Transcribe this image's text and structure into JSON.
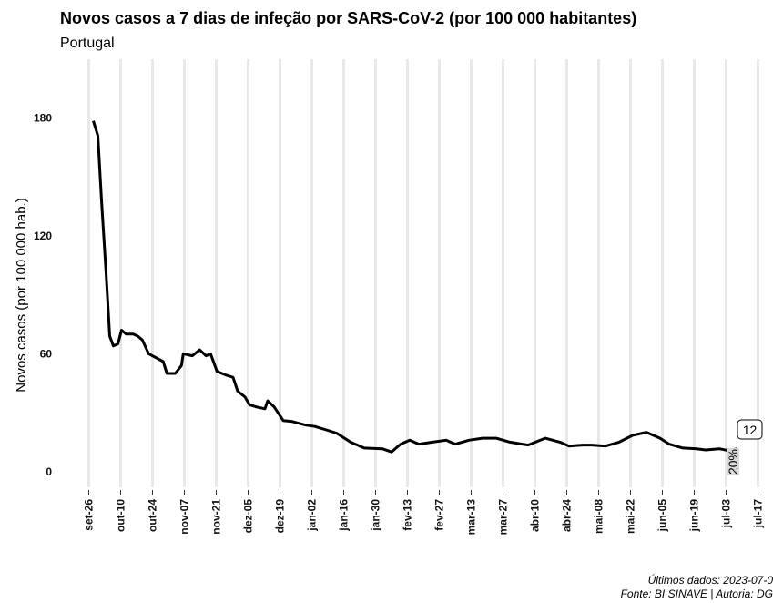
{
  "chart_data": {
    "type": "line",
    "title": "Novos casos a 7 dias de infeção por SARS-CoV-2 (por 100 000 habitantes)",
    "subtitle": "Portugal",
    "y_label": "Novos casos (por 100 000 hab.)",
    "x": [
      2,
      4,
      5.6,
      7.6,
      9.2,
      10.8,
      12.8,
      14.4,
      16.4,
      19.5,
      21.5,
      23.5,
      26.3,
      29.5,
      32.7,
      34.3,
      38,
      40.7,
      41.5,
      45.5,
      48.7,
      51.5,
      53.5,
      56.3,
      60.6,
      63.4,
      65.4,
      68.6,
      70.6,
      73.4,
      77.4,
      78.6,
      81.4,
      85.4,
      89.4,
      95.3,
      99.3,
      105,
      109,
      115,
      121,
      129,
      133,
      137,
      141,
      145,
      151,
      157,
      161,
      167,
      173,
      179,
      185,
      193,
      200.5,
      207,
      211,
      217,
      221,
      227,
      233,
      239,
      245,
      251,
      255,
      261,
      267,
      271,
      277,
      281,
      285
    ],
    "series": [
      {
        "name": "Portugal",
        "color": "#000000",
        "values": [
          178.6,
          171,
          138,
          101,
          69,
          64,
          65,
          72,
          70,
          70,
          69,
          67,
          60,
          58,
          56,
          50,
          50,
          54,
          60,
          59,
          62,
          59,
          60,
          51,
          49,
          48,
          41,
          38,
          34,
          33,
          32,
          36,
          33,
          26,
          25.5,
          23.7,
          23,
          21,
          19.5,
          15,
          12,
          11.6,
          10,
          14,
          16,
          14,
          15,
          16,
          14,
          16,
          17,
          17,
          15,
          13.5,
          17,
          15,
          13,
          13.5,
          13.5,
          13,
          15,
          18.5,
          20,
          17,
          14,
          12,
          11.6,
          11,
          11.6,
          10.7,
          11.6
        ]
      }
    ],
    "xlim": [
      -5,
      297
    ],
    "xticks": [
      {
        "value": 0,
        "label": "set-26"
      },
      {
        "value": 14,
        "label": "out-10"
      },
      {
        "value": 28,
        "label": "out-24"
      },
      {
        "value": 42,
        "label": "nov-07"
      },
      {
        "value": 56,
        "label": "nov-21"
      },
      {
        "value": 70,
        "label": "dez-05"
      },
      {
        "value": 84,
        "label": "dez-19"
      },
      {
        "value": 98,
        "label": "jan-02"
      },
      {
        "value": 112,
        "label": "jan-16"
      },
      {
        "value": 126,
        "label": "jan-30"
      },
      {
        "value": 140,
        "label": "fev-13"
      },
      {
        "value": 154,
        "label": "fev-27"
      },
      {
        "value": 168,
        "label": "mar-13"
      },
      {
        "value": 182,
        "label": "mar-27"
      },
      {
        "value": 196,
        "label": "abr-10"
      },
      {
        "value": 210,
        "label": "abr-24"
      },
      {
        "value": 224,
        "label": "mai-08"
      },
      {
        "value": 238,
        "label": "mai-22"
      },
      {
        "value": 252,
        "label": "jun-05"
      },
      {
        "value": 266,
        "label": "jun-19"
      },
      {
        "value": 280,
        "label": "jul-03"
      },
      {
        "value": 294,
        "label": "jul-17"
      }
    ],
    "ylim": [
      -8,
      210
    ],
    "yticks": [
      0,
      60,
      120,
      180
    ],
    "grid": "x",
    "annotations": [
      "12",
      "20%"
    ],
    "footer": [
      "Últimos dados: 2023-07-0",
      "Fonte: BI SINAVE | Autoria: DG"
    ]
  }
}
